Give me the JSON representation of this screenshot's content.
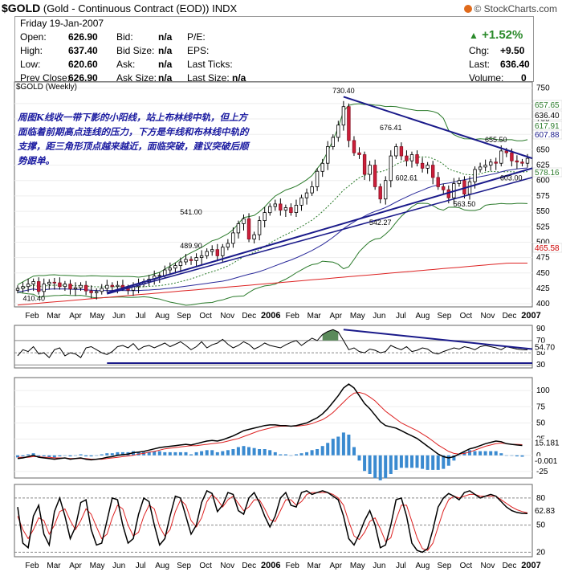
{
  "header": {
    "symbol": "$GOLD",
    "description": "(Gold - Continuous Contract (EOD))",
    "exchange": "INDX",
    "credit": "© StockCharts.com",
    "date": "Friday  19-Jan-2007"
  },
  "quote": {
    "open_label": "Open:",
    "open": "626.90",
    "high_label": "High:",
    "high": "637.40",
    "low_label": "Low:",
    "low": "620.60",
    "prev_label": "Prev Close:",
    "prev": "626.90",
    "bid_label": "Bid:",
    "bid": "n/a",
    "bidsize_label": "Bid Size:",
    "bidsize": "n/a",
    "ask_label": "Ask:",
    "ask": "n/a",
    "asksize_label": "Ask Size:",
    "asksize": "n/a",
    "pe_label": "P/E:",
    "eps_label": "EPS:",
    "lastticks_label": "Last Ticks:",
    "lastsize_label": "Last Size:",
    "lastsize": "n/a",
    "change_pct": "+1.52%",
    "chg_label": "Chg:",
    "chg": "+9.50",
    "last_label": "Last:",
    "last": "636.40",
    "volume_label": "Volume:",
    "volume": "0",
    "up_color": "#2a8a2a"
  },
  "annotation_text": "周图K线收一带下影的小阳线，站上布林线中轨，但上方面临着前期高点连线的压力，下方是年线和布林线中轨的支撑，距三角形顶点越来越近，面临突破，建议突破后顺势跟单。",
  "chart_data": [
    {
      "type": "candlestick",
      "title": "$GOLD (Weekly)",
      "x_ticks": [
        "Feb",
        "Mar",
        "Apr",
        "May",
        "Jun",
        "Jul",
        "Aug",
        "Sep",
        "Oct",
        "Nov",
        "Dec",
        "2006",
        "Feb",
        "Mar",
        "Apr",
        "May",
        "Jun",
        "Jul",
        "Aug",
        "Sep",
        "Oct",
        "Nov",
        "Dec",
        "2007"
      ],
      "ylim": [
        395,
        760
      ],
      "y_ticks": [
        400,
        425,
        450,
        475,
        500,
        525,
        550,
        575,
        600,
        625,
        650,
        675,
        700,
        725,
        750
      ],
      "close": [
        425,
        428,
        432,
        436,
        420,
        432,
        435,
        434,
        428,
        432,
        424,
        426,
        430,
        421,
        418,
        420,
        425,
        430,
        428,
        430,
        426,
        422,
        428,
        432,
        436,
        440,
        445,
        446,
        455,
        458,
        462,
        468,
        472,
        470,
        475,
        478,
        485,
        488,
        478,
        492,
        498,
        515,
        530,
        538,
        505,
        512,
        535,
        548,
        558,
        562,
        552,
        556,
        548,
        560,
        572,
        580,
        590,
        615,
        628,
        655,
        670,
        690,
        720,
        665,
        645,
        642,
        610,
        625,
        590,
        570,
        600,
        640,
        655,
        640,
        632,
        642,
        628,
        620,
        625,
        605,
        590,
        585,
        572,
        595,
        600,
        578,
        598,
        618,
        622,
        625,
        630,
        628,
        648,
        645,
        632,
        630,
        628,
        636
      ],
      "annotations": [
        "410.40",
        "489.90",
        "541.00",
        "730.40",
        "542.27",
        "676.41",
        "602.61",
        "655.50",
        "563.50",
        "603.00"
      ],
      "overlays": [
        "Bollinger Bands",
        "Moving averages"
      ],
      "right_labels": [
        {
          "text": "657.65",
          "bg": "#ffffff",
          "fg": "#2a7a2a"
        },
        {
          "text": "636.40",
          "bg": "#ffffff",
          "fg": "#000000"
        },
        {
          "text": "617.91",
          "bg": "#ffffff",
          "fg": "#2a7a2a"
        },
        {
          "text": "607.88",
          "bg": "#ffffff",
          "fg": "#1a1a8a"
        },
        {
          "text": "578.16",
          "bg": "#ffffff",
          "fg": "#2a7a2a"
        },
        {
          "text": "465.58",
          "bg": "#ffffff",
          "fg": "#cc0000"
        }
      ]
    },
    {
      "type": "line",
      "name": "RSI",
      "ylim": [
        25,
        95
      ],
      "y_ticks": [
        30,
        50,
        70,
        90
      ],
      "last_label": "54.70",
      "values": [
        45,
        55,
        52,
        60,
        48,
        50,
        42,
        55,
        58,
        45,
        50,
        48,
        42,
        58,
        60,
        55,
        50,
        47,
        52,
        60,
        62,
        58,
        65,
        55,
        60,
        62,
        58,
        62,
        66,
        60,
        64,
        68,
        62,
        55,
        60,
        68,
        58,
        63,
        66,
        72,
        64,
        58,
        62,
        68,
        64,
        56,
        60,
        66,
        62,
        60,
        58,
        63,
        67,
        70,
        62,
        68,
        74,
        70,
        80,
        85,
        88,
        84,
        70,
        55,
        58,
        52,
        50,
        56,
        54,
        50,
        52,
        62,
        58,
        55,
        60,
        52,
        54,
        58,
        56,
        50,
        48,
        52,
        55,
        58,
        56,
        60,
        58,
        55,
        60,
        62,
        60,
        58,
        55,
        60,
        58,
        56,
        55,
        54.7
      ]
    },
    {
      "type": "line",
      "name": "MACD",
      "ylim": [
        -35,
        120
      ],
      "y_ticks": [
        -25,
        0,
        25,
        50,
        75,
        100
      ],
      "last_labels": [
        "15.181",
        "-0.001"
      ],
      "macd": [
        -5,
        -4,
        -2,
        0,
        -3,
        -4,
        -5,
        -6,
        -5,
        -4,
        -6,
        -5,
        -4,
        -6,
        -7,
        -6,
        -5,
        -3,
        -2,
        0,
        1,
        2,
        4,
        5,
        6,
        8,
        10,
        12,
        13,
        14,
        15,
        16,
        17,
        16,
        18,
        20,
        22,
        23,
        22,
        24,
        27,
        30,
        34,
        38,
        40,
        42,
        44,
        46,
        47,
        47,
        46,
        46,
        45,
        46,
        48,
        50,
        54,
        58,
        64,
        72,
        82,
        92,
        104,
        110,
        104,
        92,
        80,
        72,
        62,
        52,
        46,
        44,
        42,
        38,
        34,
        30,
        26,
        20,
        14,
        8,
        2,
        -2,
        -4,
        -2,
        2,
        6,
        10,
        12,
        15,
        18,
        20,
        22,
        21,
        18,
        17,
        16,
        15.2
      ],
      "signal": [
        -3,
        -3,
        -3,
        -2,
        -2,
        -3,
        -3,
        -4,
        -4,
        -4,
        -5,
        -5,
        -5,
        -5,
        -6,
        -6,
        -6,
        -5,
        -4,
        -3,
        -2,
        -1,
        0,
        2,
        3,
        5,
        6,
        8,
        10,
        11,
        12,
        13,
        14,
        15,
        15,
        16,
        17,
        18,
        19,
        20,
        22,
        24,
        26,
        29,
        32,
        35,
        38,
        40,
        42,
        44,
        45,
        45,
        45,
        45,
        46,
        47,
        49,
        52,
        55,
        60,
        66,
        74,
        82,
        90,
        96,
        97,
        95,
        90,
        84,
        76,
        68,
        62,
        56,
        50,
        46,
        42,
        38,
        33,
        28,
        22,
        16,
        11,
        6,
        3,
        2,
        3,
        5,
        8,
        11,
        14,
        16,
        18,
        19,
        18,
        17,
        17,
        16.5
      ],
      "hist_note": "MACD histogram"
    },
    {
      "type": "line",
      "name": "Stochastic",
      "ylim": [
        15,
        95
      ],
      "y_ticks": [
        20,
        50,
        80
      ],
      "last_label": "62.83",
      "k": [
        70,
        30,
        25,
        60,
        72,
        40,
        28,
        65,
        80,
        60,
        35,
        48,
        75,
        78,
        45,
        28,
        30,
        55,
        80,
        78,
        50,
        30,
        35,
        62,
        80,
        76,
        50,
        28,
        35,
        60,
        82,
        80,
        60,
        40,
        50,
        75,
        88,
        85,
        65,
        72,
        86,
        84,
        66,
        62,
        80,
        86,
        75,
        60,
        48,
        60,
        80,
        86,
        72,
        70,
        86,
        88,
        84,
        86,
        88,
        86,
        82,
        78,
        60,
        35,
        28,
        40,
        55,
        66,
        50,
        25,
        28,
        50,
        78,
        80,
        60,
        30,
        22,
        20,
        24,
        45,
        70,
        80,
        85,
        82,
        78,
        86,
        88,
        84,
        80,
        82,
        84,
        82,
        76,
        70,
        66,
        64,
        63,
        62.8
      ],
      "d": [
        60,
        45,
        35,
        45,
        58,
        55,
        40,
        50,
        65,
        68,
        55,
        45,
        55,
        68,
        62,
        48,
        35,
        40,
        58,
        72,
        68,
        50,
        38,
        42,
        60,
        72,
        68,
        48,
        38,
        45,
        65,
        78,
        72,
        55,
        48,
        58,
        76,
        84,
        78,
        70,
        78,
        82,
        74,
        66,
        70,
        78,
        78,
        68,
        56,
        54,
        66,
        78,
        78,
        72,
        76,
        84,
        86,
        86,
        86,
        86,
        84,
        80,
        72,
        54,
        38,
        34,
        42,
        54,
        58,
        46,
        32,
        36,
        56,
        72,
        72,
        54,
        36,
        24,
        22,
        30,
        48,
        66,
        78,
        82,
        80,
        82,
        84,
        84,
        82,
        82,
        82,
        82,
        78,
        74,
        70,
        67,
        65,
        63.5
      ]
    }
  ]
}
